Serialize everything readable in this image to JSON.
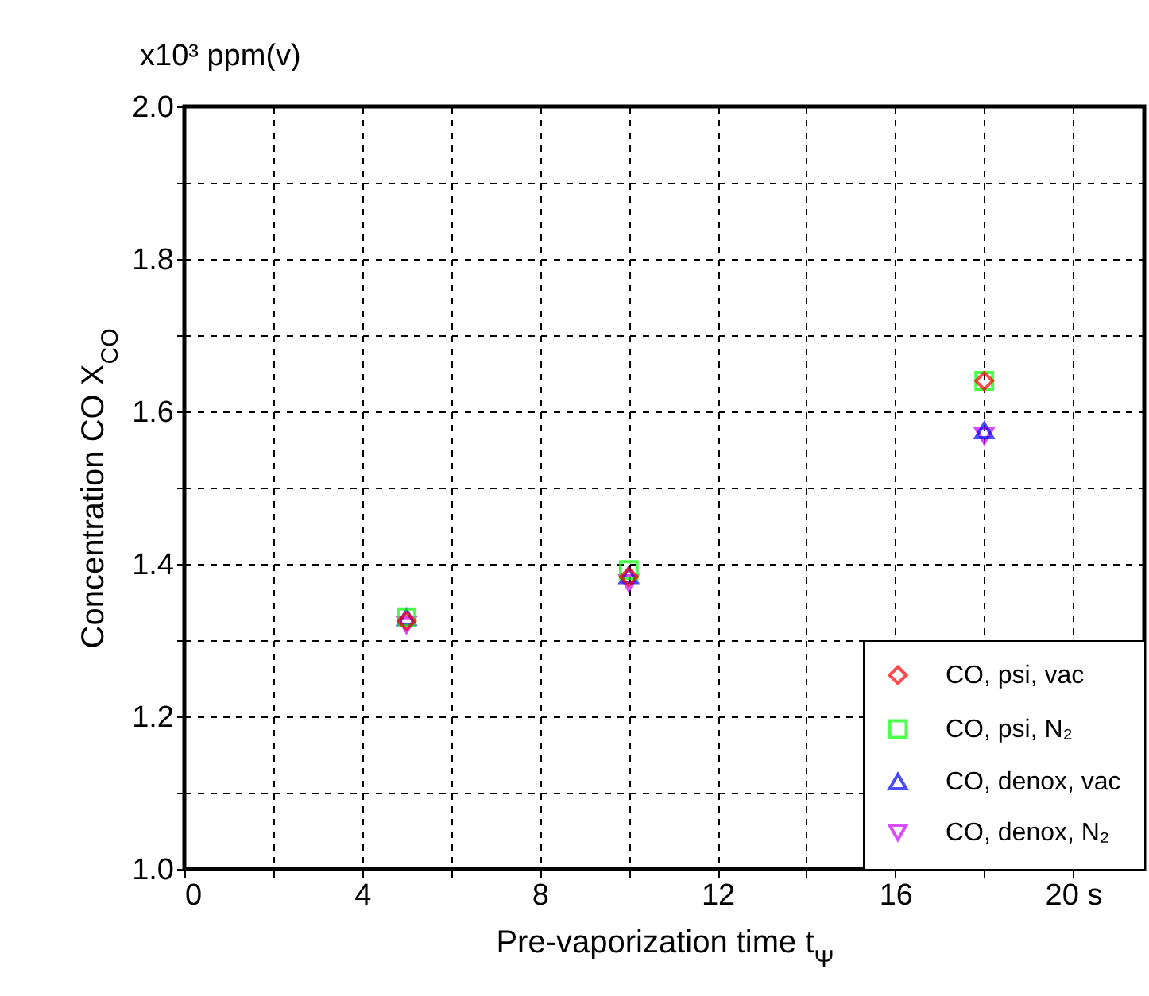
{
  "chart_data": {
    "type": "scatter",
    "xlabel": "Pre-vaporization time  t$_{Ψ}$",
    "ylabel": "Concentration CO  X$_{CO}$",
    "annotations": [
      "x10³ ppm(v)"
    ],
    "x": [
      5,
      10,
      18
    ],
    "series": [
      {
        "name": "CO, psi, vac",
        "color": "#ff0000",
        "marker": "diamond",
        "values": [
          1.325,
          1.383,
          1.64
        ]
      },
      {
        "name": "CO, psi, N₂",
        "color": "#00ff00",
        "marker": "square",
        "values": [
          1.33,
          1.392,
          1.64
        ]
      },
      {
        "name": "CO, denox, vac",
        "color": "#0000ff",
        "marker": "triangle",
        "values": [
          1.33,
          1.385,
          1.575
        ]
      },
      {
        "name": "CO, denox, N₂",
        "color": "#cc00ff",
        "marker": "triangle-down",
        "values": [
          1.32,
          1.375,
          1.568
        ]
      }
    ],
    "xlim": [
      0,
      21.6
    ],
    "xticks": [
      0,
      {
        "value": 2,
        "label": null
      },
      4,
      {
        "value": 6,
        "label": null
      },
      8,
      {
        "value": 10,
        "label": null
      },
      12,
      {
        "value": 14,
        "label": null
      },
      16,
      {
        "value": 18,
        "label": null
      },
      {
        "value": 20,
        "label": "20 s"
      }
    ],
    "ylim": [
      1.0,
      2.0
    ],
    "yticks": [
      {
        "value": 1.0,
        "label": "1.0"
      },
      {
        "value": 1.1,
        "label": null
      },
      1.2,
      {
        "value": 1.3,
        "label": null
      },
      1.4,
      {
        "value": 1.5,
        "label": null
      },
      1.6,
      {
        "value": 1.7,
        "label": null
      },
      1.8,
      {
        "value": 1.9,
        "label": null
      },
      {
        "value": 2.0,
        "label": "2.0"
      }
    ],
    "grid": true,
    "legend": "bottom right"
  }
}
